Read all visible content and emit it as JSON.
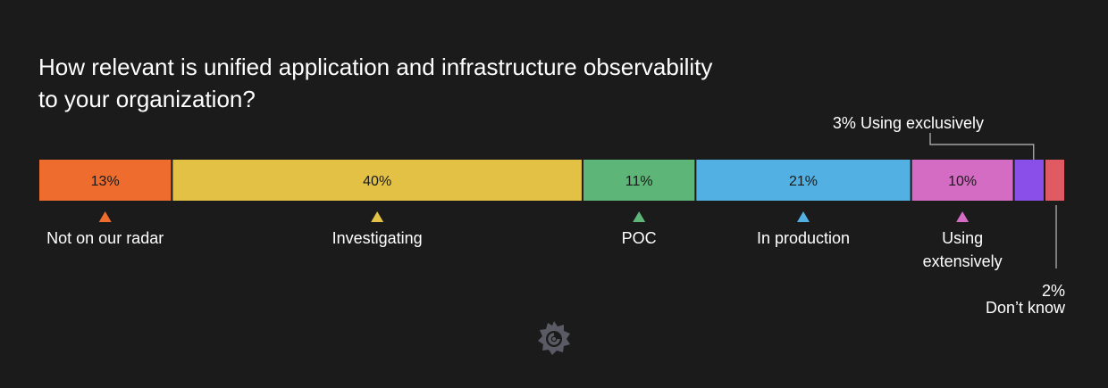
{
  "chart_data": {
    "type": "bar",
    "orientation": "horizontal-stacked",
    "title": "How relevant is unified application and infrastructure observability to your organization?",
    "total": 100,
    "segments": [
      {
        "key": "not-on-radar",
        "category": "Not on our radar",
        "value": 13,
        "value_label": "13%",
        "color": "#ee6c2e",
        "label_style": "inline"
      },
      {
        "key": "investigating",
        "category": "Investigating",
        "value": 40,
        "value_label": "40%",
        "color": "#e3c144",
        "label_style": "inline"
      },
      {
        "key": "poc",
        "category": "POC",
        "value": 11,
        "value_label": "11%",
        "color": "#5db578",
        "label_style": "inline"
      },
      {
        "key": "in-production",
        "category": "In production",
        "value": 21,
        "value_label": "21%",
        "color": "#52b0e2",
        "label_style": "inline"
      },
      {
        "key": "using-extensively",
        "category": "Using extensively",
        "value": 10,
        "value_label": "10%",
        "color": "#d36cc2",
        "label_style": "inline"
      },
      {
        "key": "using-exclusively",
        "category": "Using exclusively",
        "value": 3,
        "value_label": "3%",
        "color": "#8a4fe8",
        "label_style": "callout-above"
      },
      {
        "key": "dont-know",
        "category": "Don’t know",
        "value": 2,
        "value_label": "2%",
        "color": "#e05a64",
        "label_style": "callout-below"
      }
    ],
    "callout_above_text": "3% Using exclusively",
    "below_labels": {
      "not-on-radar": [
        "Not on our radar"
      ],
      "investigating": [
        "Investigating"
      ],
      "poc": [
        "POC"
      ],
      "in-production": [
        "In production"
      ],
      "using-extensively": [
        "Using",
        "extensively"
      ]
    },
    "callout_below_lines": [
      "2%",
      "Don’t know"
    ]
  },
  "logo": {
    "name": "grafana-logo",
    "color": "#5a5a64"
  }
}
